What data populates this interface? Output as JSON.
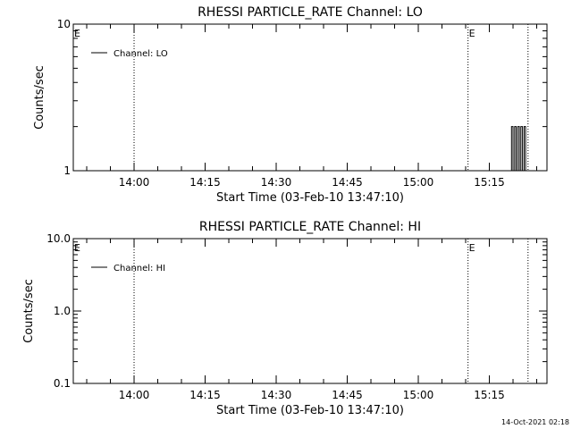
{
  "timestamp": "14-Oct-2021 02:18",
  "chart_data": [
    {
      "type": "line",
      "title": "RHESSI PARTICLE_RATE Channel: LO",
      "xlabel": "Start Time (03-Feb-10 13:47:10)",
      "ylabel": "Counts/sec",
      "y_scale": "log",
      "ylim": [
        1,
        10
      ],
      "y_ticks": [
        {
          "v": 1,
          "label": "1"
        },
        {
          "v": 10,
          "label": "10"
        }
      ],
      "y_minor_ticks": [
        2,
        3,
        4,
        5,
        6,
        7,
        8,
        9
      ],
      "xlim": [
        "13:47:10",
        "15:27:10"
      ],
      "x_ticks": [
        "14:00",
        "14:15",
        "14:30",
        "14:45",
        "15:00",
        "15:15"
      ],
      "legend": {
        "label": "Channel: LO",
        "position": "top-left"
      },
      "dotted_time_markers": [
        "14:00:00",
        "15:10:30",
        "15:23:10"
      ],
      "event_markers": [
        {
          "time": "13:47:10",
          "label": "E"
        },
        {
          "time": "15:10:30",
          "label": "E"
        }
      ],
      "series": [
        {
          "name": "Channel: LO",
          "x": [
            "15:19:40",
            "15:19:40",
            "15:20:00",
            "15:20:00",
            "15:20:20",
            "15:20:20",
            "15:20:40",
            "15:20:40",
            "15:21:00",
            "15:21:00",
            "15:21:20",
            "15:21:20",
            "15:21:40",
            "15:21:40",
            "15:22:00",
            "15:22:00",
            "15:22:20",
            "15:22:20",
            "15:22:40",
            "15:22:40"
          ],
          "y": [
            1,
            2,
            2,
            1,
            1,
            2,
            2,
            1,
            1,
            2,
            2,
            1,
            1,
            2,
            2,
            1,
            1,
            2,
            2,
            1
          ]
        }
      ]
    },
    {
      "type": "line",
      "title": "RHESSI PARTICLE_RATE Channel: HI",
      "xlabel": "Start Time (03-Feb-10 13:47:10)",
      "ylabel": "Counts/sec",
      "y_scale": "log",
      "ylim": [
        0.1,
        10
      ],
      "y_ticks": [
        {
          "v": 0.1,
          "label": "0.1"
        },
        {
          "v": 1,
          "label": "1.0"
        },
        {
          "v": 10,
          "label": "10.0"
        }
      ],
      "y_minor_ticks": [
        0.2,
        0.3,
        0.4,
        0.5,
        0.6,
        0.7,
        0.8,
        0.9,
        2,
        3,
        4,
        5,
        6,
        7,
        8,
        9
      ],
      "xlim": [
        "13:47:10",
        "15:27:10"
      ],
      "x_ticks": [
        "14:00",
        "14:15",
        "14:30",
        "14:45",
        "15:00",
        "15:15"
      ],
      "legend": {
        "label": "Channel: HI",
        "position": "top-left"
      },
      "dotted_time_markers": [
        "14:00:00",
        "15:10:30",
        "15:23:10"
      ],
      "event_markers": [
        {
          "time": "13:47:10",
          "label": "E"
        },
        {
          "time": "15:10:30",
          "label": "E"
        }
      ],
      "series": [
        {
          "name": "Channel: HI",
          "x": [],
          "y": []
        }
      ]
    }
  ]
}
